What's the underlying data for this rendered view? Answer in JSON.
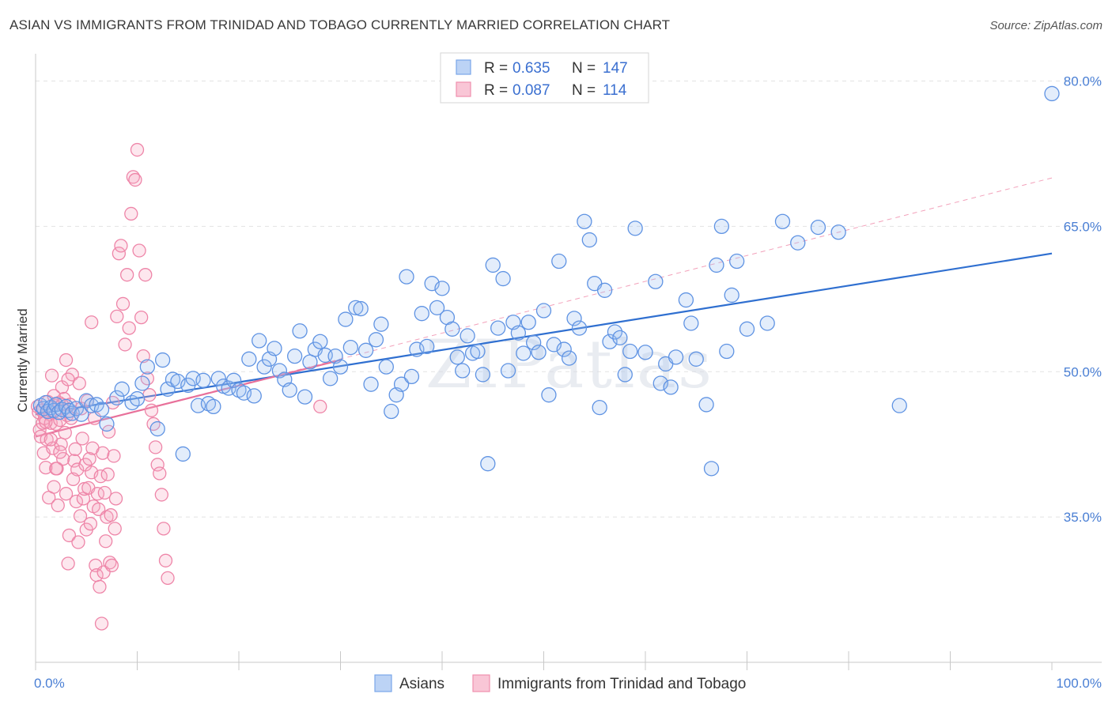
{
  "header": {
    "title": "ASIAN VS IMMIGRANTS FROM TRINIDAD AND TOBAGO CURRENTLY MARRIED CORRELATION CHART",
    "source": "Source: ZipAtlas.com"
  },
  "watermark": "ZIPatlas",
  "colors": {
    "asian": "#6f9fe8",
    "asian_line": "#2f6fd0",
    "trinidad": "#f08aaa",
    "trinidad_line": "#e8709a",
    "tick": "#4a7fd4"
  },
  "legend": {
    "rows": [
      {
        "r_label": "R =",
        "r_value": "0.635",
        "n_label": "N =",
        "n_value": "147"
      },
      {
        "r_label": "R =",
        "r_value": "0.087",
        "n_label": "N =",
        "n_value": "114"
      }
    ]
  },
  "chart_data": {
    "type": "scatter",
    "ylabel": "Currently Married",
    "xlim": [
      0,
      100
    ],
    "ylim": [
      20,
      82
    ],
    "x_tick_labels": [
      {
        "value": 0,
        "label": "0.0%"
      },
      {
        "value": 100,
        "label": "100.0%"
      }
    ],
    "y_ticks": [
      {
        "value": 35,
        "label": "35.0%"
      },
      {
        "value": 50,
        "label": "50.0%"
      },
      {
        "value": 65,
        "label": "65.0%"
      },
      {
        "value": 80,
        "label": "80.0%"
      }
    ],
    "grid": "horizontal dashed",
    "legend_placement": "bottom",
    "series": [
      {
        "name": "Asians",
        "trend": {
          "x": [
            0,
            100
          ],
          "y": [
            45.6,
            62.2
          ]
        },
        "points": [
          [
            0.5,
            46.5
          ],
          [
            0.8,
            46.2
          ],
          [
            1.0,
            46.8
          ],
          [
            1.2,
            45.9
          ],
          [
            1.5,
            46.3
          ],
          [
            1.8,
            46.0
          ],
          [
            2.0,
            46.6
          ],
          [
            2.3,
            45.8
          ],
          [
            2.6,
            46.1
          ],
          [
            3.0,
            46.4
          ],
          [
            3.3,
            46.0
          ],
          [
            3.6,
            45.7
          ],
          [
            4.0,
            46.2
          ],
          [
            4.5,
            45.6
          ],
          [
            5.0,
            47.0
          ],
          [
            5.5,
            46.5
          ],
          [
            6.0,
            46.6
          ],
          [
            6.5,
            46.1
          ],
          [
            7.0,
            44.6
          ],
          [
            8.0,
            47.3
          ],
          [
            8.5,
            48.2
          ],
          [
            9.5,
            46.8
          ],
          [
            10.0,
            47.2
          ],
          [
            10.5,
            48.8
          ],
          [
            11.0,
            50.5
          ],
          [
            12.0,
            44.1
          ],
          [
            12.5,
            51.2
          ],
          [
            13.0,
            48.2
          ],
          [
            13.5,
            49.2
          ],
          [
            14.0,
            49.0
          ],
          [
            14.5,
            41.5
          ],
          [
            15.0,
            48.6
          ],
          [
            15.5,
            49.3
          ],
          [
            16.0,
            46.5
          ],
          [
            16.5,
            49.1
          ],
          [
            17.0,
            46.7
          ],
          [
            17.5,
            46.4
          ],
          [
            18.0,
            49.3
          ],
          [
            18.5,
            48.5
          ],
          [
            19.0,
            48.3
          ],
          [
            19.5,
            49.1
          ],
          [
            20.0,
            48.1
          ],
          [
            20.5,
            47.8
          ],
          [
            21.0,
            51.3
          ],
          [
            21.5,
            47.5
          ],
          [
            22.0,
            53.2
          ],
          [
            22.5,
            50.5
          ],
          [
            23.0,
            51.3
          ],
          [
            23.5,
            52.4
          ],
          [
            24.0,
            50.1
          ],
          [
            24.5,
            49.2
          ],
          [
            25.0,
            48.1
          ],
          [
            25.5,
            51.6
          ],
          [
            26.0,
            54.2
          ],
          [
            26.5,
            47.4
          ],
          [
            27.0,
            51.0
          ],
          [
            27.5,
            52.3
          ],
          [
            28.0,
            53.1
          ],
          [
            28.5,
            51.7
          ],
          [
            29.0,
            49.3
          ],
          [
            29.5,
            51.6
          ],
          [
            30.0,
            50.5
          ],
          [
            30.5,
            55.4
          ],
          [
            31.0,
            52.5
          ],
          [
            31.5,
            56.6
          ],
          [
            32.0,
            56.5
          ],
          [
            32.5,
            52.2
          ],
          [
            33.0,
            48.7
          ],
          [
            33.5,
            53.3
          ],
          [
            34.0,
            54.9
          ],
          [
            34.5,
            50.5
          ],
          [
            35.0,
            45.9
          ],
          [
            35.5,
            47.6
          ],
          [
            36.0,
            48.7
          ],
          [
            36.5,
            59.8
          ],
          [
            37.0,
            49.5
          ],
          [
            37.5,
            52.3
          ],
          [
            38.0,
            56.0
          ],
          [
            38.5,
            52.6
          ],
          [
            39.0,
            59.1
          ],
          [
            39.5,
            56.6
          ],
          [
            40.0,
            58.6
          ],
          [
            40.5,
            55.6
          ],
          [
            41.0,
            54.4
          ],
          [
            41.5,
            51.5
          ],
          [
            42.0,
            50.1
          ],
          [
            42.5,
            53.7
          ],
          [
            43.0,
            51.9
          ],
          [
            43.5,
            52.1
          ],
          [
            44.0,
            49.7
          ],
          [
            44.5,
            40.5
          ],
          [
            45.0,
            61.0
          ],
          [
            45.5,
            54.5
          ],
          [
            46.0,
            59.6
          ],
          [
            46.5,
            50.1
          ],
          [
            47.0,
            55.1
          ],
          [
            47.5,
            54.0
          ],
          [
            48.0,
            51.9
          ],
          [
            48.5,
            55.1
          ],
          [
            49.0,
            53.0
          ],
          [
            49.5,
            52.0
          ],
          [
            50.0,
            56.3
          ],
          [
            50.5,
            47.6
          ],
          [
            51.0,
            52.8
          ],
          [
            51.5,
            61.4
          ],
          [
            52.0,
            52.3
          ],
          [
            52.5,
            51.4
          ],
          [
            53.0,
            55.5
          ],
          [
            53.5,
            54.5
          ],
          [
            54.0,
            65.5
          ],
          [
            54.5,
            63.6
          ],
          [
            55.0,
            59.1
          ],
          [
            55.5,
            46.3
          ],
          [
            56.0,
            58.4
          ],
          [
            56.5,
            53.1
          ],
          [
            57.0,
            54.1
          ],
          [
            57.5,
            53.5
          ],
          [
            58.0,
            49.7
          ],
          [
            58.5,
            52.1
          ],
          [
            59.0,
            64.8
          ],
          [
            60.0,
            52.0
          ],
          [
            61.0,
            59.3
          ],
          [
            61.5,
            48.8
          ],
          [
            62.0,
            50.8
          ],
          [
            62.5,
            48.4
          ],
          [
            63.0,
            51.5
          ],
          [
            64.0,
            57.4
          ],
          [
            64.5,
            55.0
          ],
          [
            65.0,
            51.3
          ],
          [
            66.0,
            46.6
          ],
          [
            66.5,
            40.0
          ],
          [
            67.0,
            61.0
          ],
          [
            67.5,
            65.0
          ],
          [
            68.0,
            52.1
          ],
          [
            68.5,
            57.9
          ],
          [
            69.0,
            61.4
          ],
          [
            70.0,
            54.4
          ],
          [
            72.0,
            55.0
          ],
          [
            73.5,
            65.5
          ],
          [
            75.0,
            63.3
          ],
          [
            77.0,
            64.9
          ],
          [
            79.0,
            64.4
          ],
          [
            85.0,
            46.5
          ],
          [
            100.0,
            78.7
          ]
        ]
      },
      {
        "name": "Immigrants from Trinidad and Tobago",
        "trend": {
          "x": [
            0,
            30
          ],
          "y": [
            43.3,
            51.2
          ]
        },
        "dashed_trend": {
          "x": [
            0,
            100
          ],
          "y": [
            43.3,
            70.0
          ]
        },
        "points": [
          [
            0.2,
            46.4
          ],
          [
            0.3,
            45.8
          ],
          [
            0.4,
            44.0
          ],
          [
            0.5,
            43.3
          ],
          [
            0.6,
            46.0
          ],
          [
            0.7,
            44.7
          ],
          [
            0.8,
            41.6
          ],
          [
            0.9,
            45.2
          ],
          [
            1.0,
            40.1
          ],
          [
            1.1,
            43.0
          ],
          [
            1.2,
            46.9
          ],
          [
            1.3,
            37.0
          ],
          [
            1.4,
            45.6
          ],
          [
            1.5,
            44.7
          ],
          [
            1.6,
            49.6
          ],
          [
            1.7,
            42.1
          ],
          [
            1.8,
            38.1
          ],
          [
            1.9,
            46.5
          ],
          [
            2.0,
            44.6
          ],
          [
            2.1,
            40.0
          ],
          [
            2.2,
            36.2
          ],
          [
            2.3,
            46.8
          ],
          [
            2.4,
            45.0
          ],
          [
            2.5,
            42.5
          ],
          [
            2.6,
            48.4
          ],
          [
            2.7,
            41.0
          ],
          [
            2.8,
            47.2
          ],
          [
            2.9,
            43.7
          ],
          [
            3.0,
            37.4
          ],
          [
            3.1,
            45.5
          ],
          [
            3.2,
            30.2
          ],
          [
            3.3,
            33.1
          ],
          [
            3.4,
            46.6
          ],
          [
            3.5,
            45.2
          ],
          [
            3.6,
            49.7
          ],
          [
            3.7,
            38.9
          ],
          [
            3.8,
            40.8
          ],
          [
            3.9,
            42.0
          ],
          [
            4.0,
            36.6
          ],
          [
            4.1,
            39.9
          ],
          [
            4.2,
            32.4
          ],
          [
            4.3,
            48.8
          ],
          [
            4.4,
            35.1
          ],
          [
            4.5,
            46.2
          ],
          [
            4.6,
            43.1
          ],
          [
            4.7,
            36.9
          ],
          [
            4.8,
            37.9
          ],
          [
            4.9,
            40.4
          ],
          [
            5.0,
            33.7
          ],
          [
            5.1,
            47.0
          ],
          [
            5.2,
            38.0
          ],
          [
            5.3,
            41.0
          ],
          [
            5.4,
            34.3
          ],
          [
            5.5,
            39.6
          ],
          [
            5.6,
            42.1
          ],
          [
            5.7,
            36.1
          ],
          [
            5.8,
            45.2
          ],
          [
            5.9,
            30.0
          ],
          [
            6.0,
            29.0
          ],
          [
            6.1,
            37.4
          ],
          [
            6.2,
            35.8
          ],
          [
            6.3,
            27.8
          ],
          [
            6.4,
            39.2
          ],
          [
            6.5,
            24.0
          ],
          [
            6.6,
            41.6
          ],
          [
            6.7,
            29.3
          ],
          [
            6.8,
            37.5
          ],
          [
            6.9,
            32.5
          ],
          [
            7.0,
            35.0
          ],
          [
            7.1,
            39.4
          ],
          [
            7.2,
            43.8
          ],
          [
            7.3,
            30.3
          ],
          [
            7.4,
            35.2
          ],
          [
            7.5,
            30.0
          ],
          [
            7.6,
            46.8
          ],
          [
            7.7,
            41.3
          ],
          [
            7.8,
            33.8
          ],
          [
            7.9,
            36.9
          ],
          [
            8.0,
            55.7
          ],
          [
            8.2,
            62.2
          ],
          [
            8.4,
            63.0
          ],
          [
            8.6,
            57.0
          ],
          [
            8.8,
            52.8
          ],
          [
            9.0,
            60.0
          ],
          [
            9.2,
            54.5
          ],
          [
            9.4,
            66.3
          ],
          [
            9.6,
            70.1
          ],
          [
            9.8,
            69.8
          ],
          [
            10.0,
            72.9
          ],
          [
            10.2,
            62.5
          ],
          [
            10.4,
            55.6
          ],
          [
            10.6,
            51.6
          ],
          [
            10.8,
            60.0
          ],
          [
            11.0,
            49.3
          ],
          [
            11.2,
            47.6
          ],
          [
            11.4,
            46.0
          ],
          [
            11.6,
            44.6
          ],
          [
            11.8,
            42.2
          ],
          [
            12.0,
            40.4
          ],
          [
            12.2,
            39.5
          ],
          [
            12.4,
            37.3
          ],
          [
            12.6,
            33.8
          ],
          [
            12.8,
            30.5
          ],
          [
            13.0,
            28.7
          ],
          [
            3.0,
            51.2
          ],
          [
            3.2,
            49.2
          ],
          [
            2.6,
            46.6
          ],
          [
            1.8,
            47.5
          ],
          [
            2.4,
            41.7
          ],
          [
            1.0,
            44.8
          ],
          [
            1.5,
            43.0
          ],
          [
            2.0,
            40.0
          ],
          [
            28.0,
            46.4
          ],
          [
            5.5,
            55.1
          ]
        ]
      }
    ]
  },
  "bottom_legend": [
    {
      "label": "Asians"
    },
    {
      "label": "Immigrants from Trinidad and Tobago"
    }
  ]
}
